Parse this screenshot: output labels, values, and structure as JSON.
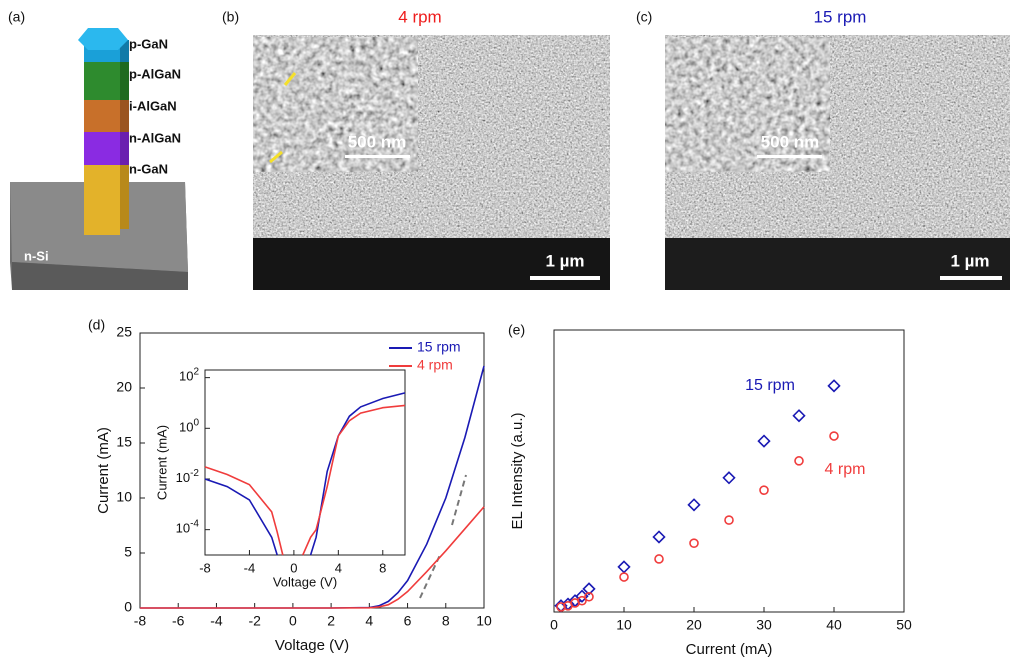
{
  "panels": {
    "a": "(a)",
    "b": "(b)",
    "c": "(c)",
    "d": "(d)",
    "e": "(e)"
  },
  "structure": {
    "layers": [
      "p-GaN",
      "p-AlGaN",
      "i-AlGaN",
      "n-AlGaN",
      "n-GaN"
    ],
    "substrate": "n-Si"
  },
  "sem": [
    {
      "title": "4 rpm",
      "inset_scale": "500 nm",
      "scale": "1 µm"
    },
    {
      "title": "15 rpm",
      "inset_scale": "500 nm",
      "scale": "1 µm"
    }
  ],
  "chart_data": [
    {
      "type": "line",
      "xlabel": "Voltage (V)",
      "ylabel": "Current (mA)",
      "x": [
        -8,
        -6,
        -4,
        -2,
        0,
        2,
        4,
        4.5,
        5,
        5.5,
        6,
        7,
        8,
        9,
        10
      ],
      "series": [
        {
          "name": "15 rpm",
          "color": "#1a1ab4",
          "values": [
            0,
            0,
            0,
            0,
            0,
            0,
            0.05,
            0.2,
            0.6,
            1.4,
            2.5,
            5.8,
            10,
            15.5,
            22
          ]
        },
        {
          "name": "4 rpm",
          "color": "#f03c3c",
          "values": [
            0,
            0,
            0,
            0,
            0,
            0,
            0.02,
            0.1,
            0.3,
            0.8,
            1.5,
            3.3,
            5.2,
            7.2,
            9.2
          ]
        }
      ],
      "xlim": [
        -8,
        10
      ],
      "ylim": [
        0,
        25
      ],
      "xticks": [
        -8,
        -6,
        -4,
        -2,
        0,
        2,
        4,
        6,
        8,
        10
      ],
      "yticks": [
        0,
        5,
        10,
        15,
        20,
        25
      ],
      "legend": "upper right"
    },
    {
      "type": "line",
      "xlabel": "Voltage (V)",
      "ylabel": "Current (mA)",
      "log_y": true,
      "x": [
        -8,
        -6,
        -4,
        -2,
        -1.5,
        -1,
        0,
        0.8,
        1.5,
        2,
        3,
        4,
        5,
        6,
        8,
        10
      ],
      "series": [
        {
          "name": "15 rpm",
          "color": "#1a1ab4",
          "values": [
            0.01,
            0.005,
            0.0015,
            5e-05,
            1e-05,
            null,
            null,
            null,
            1e-05,
            5e-05,
            0.02,
            0.5,
            3,
            7,
            15,
            25
          ]
        },
        {
          "name": "4 rpm",
          "color": "#f03c3c",
          "values": [
            0.03,
            0.015,
            0.006,
            0.0005,
            8e-05,
            1e-05,
            null,
            1e-05,
            5e-05,
            0.0001,
            0.005,
            0.5,
            2,
            4,
            6.5,
            8
          ]
        }
      ],
      "xlim": [
        -8,
        10
      ],
      "ylim": [
        1e-05,
        200
      ],
      "xticks": [
        -8,
        -4,
        0,
        4,
        8
      ],
      "yticks": [
        {
          "value": 100,
          "label": "10",
          "sup": "2"
        },
        {
          "value": 1,
          "label": "10",
          "sup": "0"
        },
        {
          "value": 0.01,
          "label": "10",
          "sup": "-2"
        },
        {
          "value": 0.0001,
          "label": "10",
          "sup": "-4"
        }
      ]
    },
    {
      "type": "scatter",
      "xlabel": "Current (mA)",
      "ylabel": "EL Intensity (a.u.)",
      "x": [
        1,
        2,
        3,
        4,
        5,
        10,
        15,
        20,
        25,
        30,
        35,
        40
      ],
      "series": [
        {
          "name": "15 rpm",
          "color": "#1a1ab4",
          "marker": "diamond",
          "values": [
            0.11,
            0.14,
            0.2,
            0.28,
            0.41,
            0.8,
            1.33,
            1.9,
            2.38,
            3.03,
            3.48,
            4.01
          ]
        },
        {
          "name": "4 rpm",
          "color": "#f03c3c",
          "marker": "circle",
          "values": [
            0.09,
            0.11,
            0.16,
            0.2,
            0.27,
            0.62,
            0.94,
            1.22,
            1.63,
            2.16,
            2.68,
            3.12
          ]
        }
      ],
      "xlim": [
        0,
        50
      ],
      "ylim": [
        0,
        5
      ],
      "xticks": [
        0,
        10,
        20,
        30,
        40,
        50
      ]
    }
  ]
}
